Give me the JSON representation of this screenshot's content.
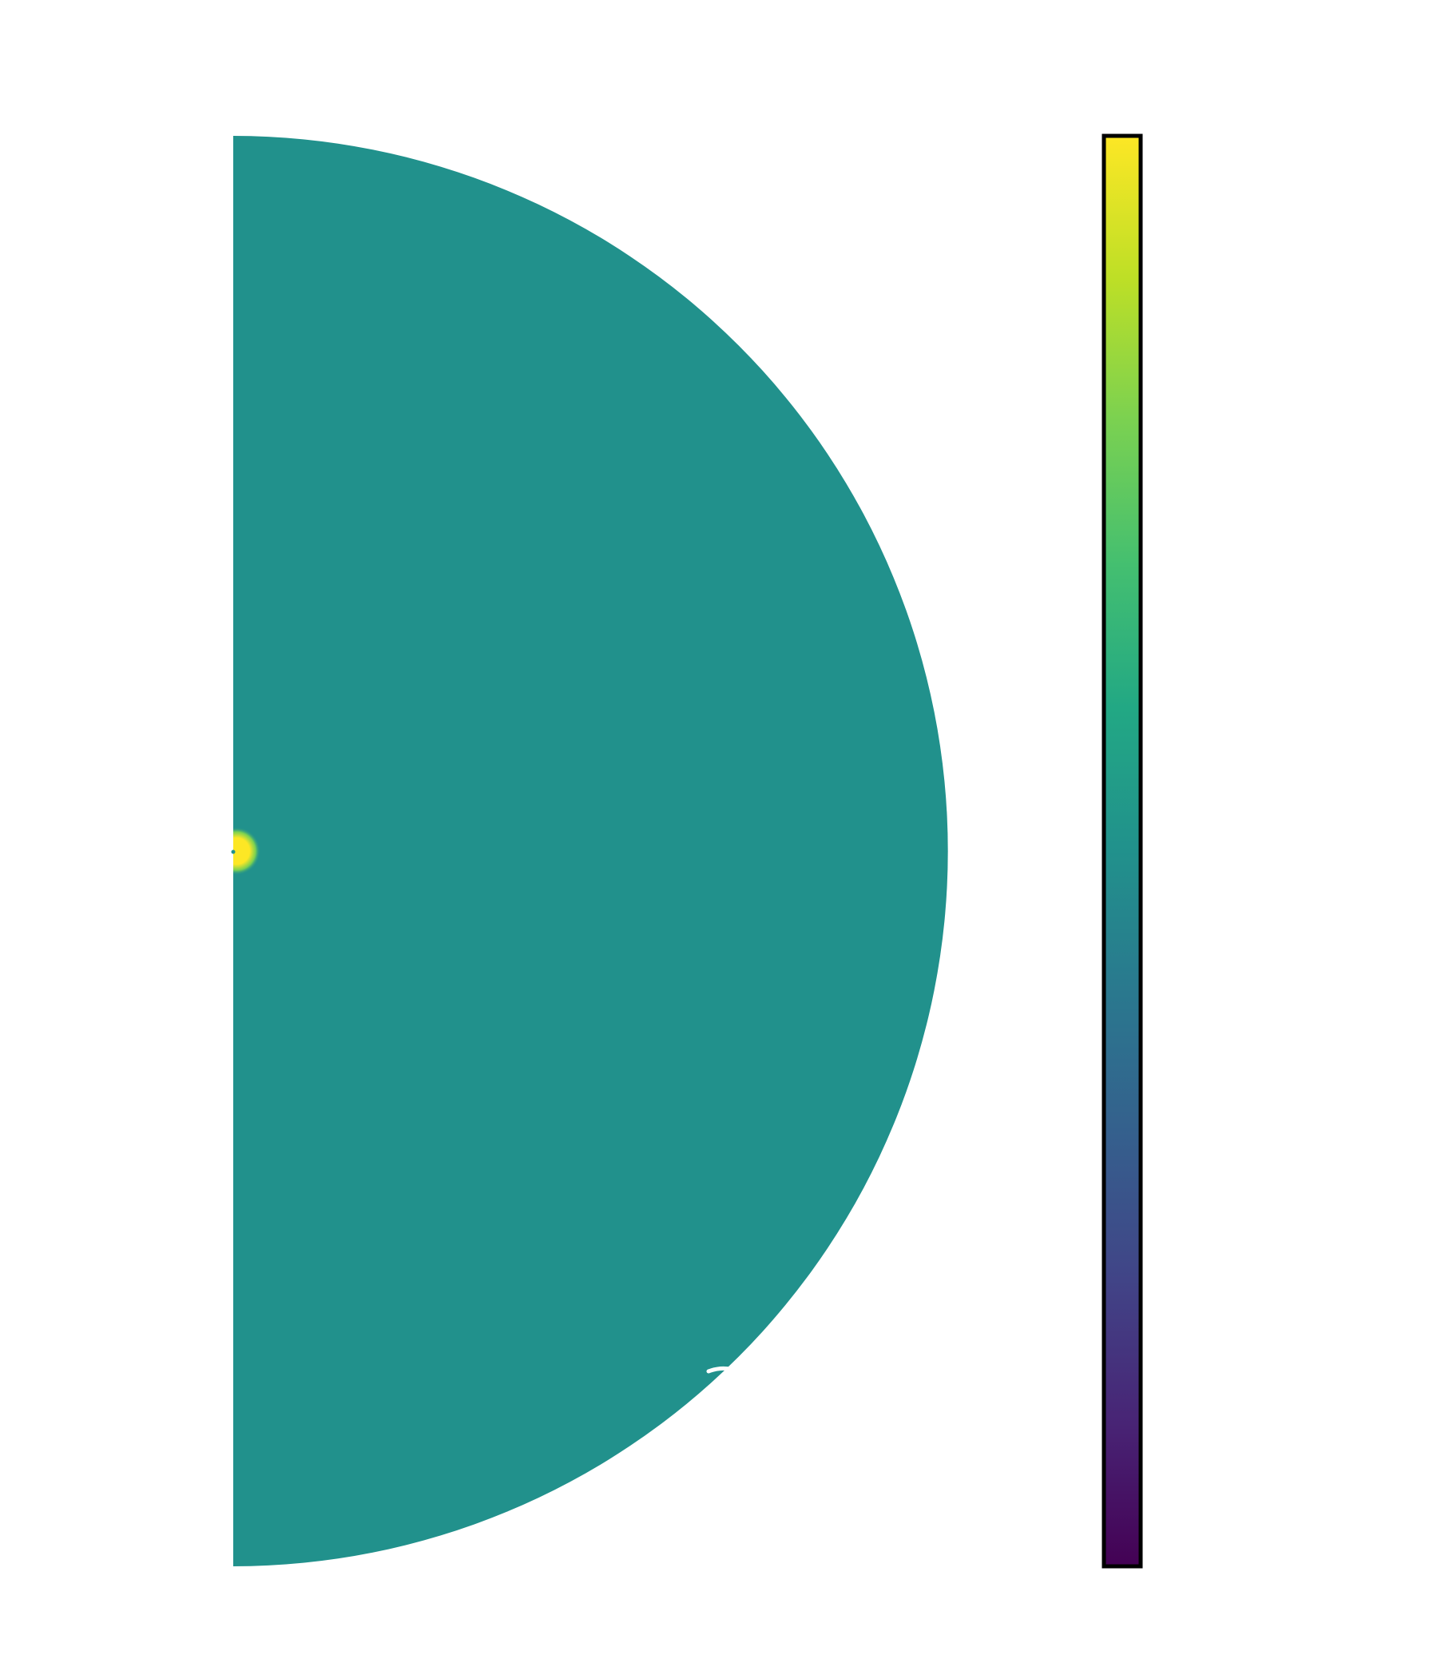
{
  "chart_data": {
    "type": "heatmap",
    "projection": "polar-half-disc",
    "colormap": "viridis",
    "colorbar": {
      "visible": true,
      "ticks_visible": false,
      "placement": "right"
    },
    "axes_visible": false,
    "field": {
      "background_level": 0.5,
      "source_level": 1.0
    },
    "colors": {
      "background_fill": "#21918c",
      "source": "#fde725",
      "arc_highlight": "#ffffff"
    }
  }
}
